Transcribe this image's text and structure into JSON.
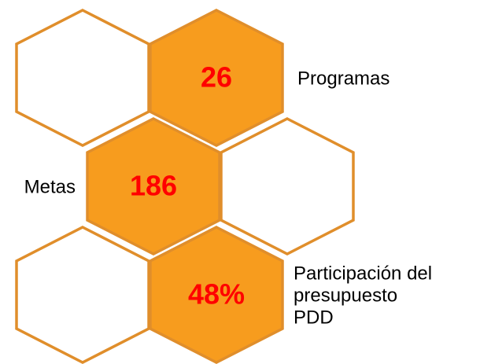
{
  "items": [
    {
      "value": "26",
      "label": [
        "Programas"
      ]
    },
    {
      "value": "186",
      "label": [
        "Metas"
      ]
    },
    {
      "value": "48%",
      "label": [
        "Participación del",
        "presupuesto",
        "PDD"
      ]
    }
  ]
}
